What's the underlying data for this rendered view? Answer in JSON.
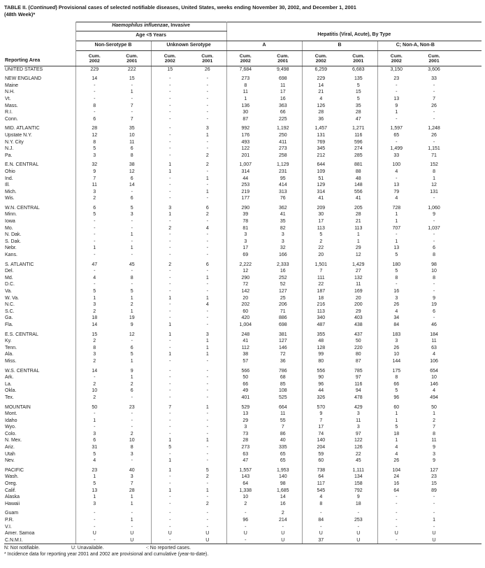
{
  "title": {
    "part1": "TABLE II. (",
    "italic": "Continued",
    "part2": ") Provisional cases of selected notifiable diseases, United States, weeks ending November 30, 2002, and December 1, 2001",
    "line2": "(48th Week)*"
  },
  "header": {
    "reporting_area": "Reporting Area",
    "group1": {
      "title_italic": "Haemophilus influenzae",
      "title_rest": ", Invasive",
      "sub": "Age <5 Years",
      "cols": [
        "Non-Serotype B",
        "Unknown Serotype"
      ]
    },
    "group2": {
      "title": "Hepatitis (Viral, Acute), By Type",
      "cols": [
        "A",
        "B",
        "C; Non-A, Non-B"
      ]
    },
    "cum_label": "Cum.",
    "years": [
      "2002",
      "2001"
    ]
  },
  "rows": [
    {
      "area": "UNITED STATES",
      "values": [
        "229",
        "222",
        "15",
        "26",
        "7,684",
        "9,498",
        "6,259",
        "6,683",
        "3,150",
        "3,606"
      ]
    },
    {
      "area": "NEW ENGLAND",
      "gap": true,
      "values": [
        "14",
        "15",
        "-",
        "-",
        "273",
        "698",
        "229",
        "135",
        "23",
        "33"
      ]
    },
    {
      "area": "Maine",
      "values": [
        "-",
        "-",
        "-",
        "-",
        "8",
        "11",
        "14",
        "5",
        "-",
        "-"
      ]
    },
    {
      "area": "N.H.",
      "values": [
        "-",
        "1",
        "-",
        "-",
        "11",
        "17",
        "21",
        "15",
        "-",
        "-"
      ]
    },
    {
      "area": "Vt.",
      "values": [
        "-",
        "-",
        "-",
        "-",
        "1",
        "16",
        "4",
        "5",
        "13",
        "7"
      ]
    },
    {
      "area": "Mass.",
      "values": [
        "8",
        "7",
        "-",
        "-",
        "136",
        "363",
        "126",
        "35",
        "9",
        "26"
      ]
    },
    {
      "area": "R.I.",
      "values": [
        "-",
        "-",
        "-",
        "-",
        "30",
        "66",
        "28",
        "28",
        "1",
        "-"
      ]
    },
    {
      "area": "Conn.",
      "values": [
        "6",
        "7",
        "-",
        "-",
        "87",
        "225",
        "36",
        "47",
        "-",
        "-"
      ]
    },
    {
      "area": "MID. ATLANTIC",
      "gap": true,
      "values": [
        "28",
        "35",
        "-",
        "3",
        "992",
        "1,192",
        "1,457",
        "1,271",
        "1,597",
        "1,248"
      ]
    },
    {
      "area": "Upstate N.Y.",
      "values": [
        "12",
        "10",
        "-",
        "1",
        "176",
        "250",
        "131",
        "116",
        "65",
        "26"
      ]
    },
    {
      "area": "N.Y. City",
      "values": [
        "8",
        "11",
        "-",
        "-",
        "493",
        "411",
        "769",
        "596",
        "-",
        "-"
      ]
    },
    {
      "area": "N.J.",
      "values": [
        "5",
        "6",
        "-",
        "-",
        "122",
        "273",
        "345",
        "274",
        "1,499",
        "1,151"
      ]
    },
    {
      "area": "Pa.",
      "values": [
        "3",
        "8",
        "-",
        "2",
        "201",
        "258",
        "212",
        "285",
        "33",
        "71"
      ]
    },
    {
      "area": "E.N. CENTRAL",
      "gap": true,
      "values": [
        "32",
        "38",
        "1",
        "2",
        "1,007",
        "1,129",
        "644",
        "881",
        "100",
        "152"
      ]
    },
    {
      "area": "Ohio",
      "values": [
        "9",
        "12",
        "1",
        "-",
        "314",
        "231",
        "109",
        "88",
        "4",
        "8"
      ]
    },
    {
      "area": "Ind.",
      "values": [
        "7",
        "6",
        "-",
        "1",
        "44",
        "95",
        "51",
        "48",
        "-",
        "1"
      ]
    },
    {
      "area": "Ill.",
      "values": [
        "11",
        "14",
        "-",
        "-",
        "253",
        "414",
        "129",
        "148",
        "13",
        "12"
      ]
    },
    {
      "area": "Mich.",
      "values": [
        "3",
        "-",
        "-",
        "1",
        "219",
        "313",
        "314",
        "556",
        "79",
        "131"
      ]
    },
    {
      "area": "Wis.",
      "values": [
        "2",
        "6",
        "-",
        "-",
        "177",
        "76",
        "41",
        "41",
        "4",
        "-"
      ]
    },
    {
      "area": "W.N. CENTRAL",
      "gap": true,
      "values": [
        "6",
        "5",
        "3",
        "6",
        "290",
        "362",
        "209",
        "205",
        "728",
        "1,060"
      ]
    },
    {
      "area": "Minn.",
      "values": [
        "5",
        "3",
        "1",
        "2",
        "39",
        "41",
        "30",
        "28",
        "1",
        "9"
      ]
    },
    {
      "area": "Iowa",
      "values": [
        "-",
        "-",
        "-",
        "-",
        "78",
        "35",
        "17",
        "21",
        "1",
        "-"
      ]
    },
    {
      "area": "Mo.",
      "values": [
        "-",
        "-",
        "2",
        "4",
        "81",
        "82",
        "113",
        "113",
        "707",
        "1,037"
      ]
    },
    {
      "area": "N. Dak.",
      "values": [
        "-",
        "1",
        "-",
        "-",
        "3",
        "3",
        "5",
        "1",
        "-",
        "-"
      ]
    },
    {
      "area": "S. Dak.",
      "values": [
        "-",
        "-",
        "-",
        "-",
        "3",
        "3",
        "2",
        "1",
        "1",
        "-"
      ]
    },
    {
      "area": "Nebr.",
      "values": [
        "1",
        "1",
        "-",
        "-",
        "17",
        "32",
        "22",
        "29",
        "13",
        "6"
      ]
    },
    {
      "area": "Kans.",
      "values": [
        "-",
        "-",
        "-",
        "-",
        "69",
        "166",
        "20",
        "12",
        "5",
        "8"
      ]
    },
    {
      "area": "S. ATLANTIC",
      "gap": true,
      "values": [
        "47",
        "45",
        "2",
        "6",
        "2,222",
        "2,333",
        "1,501",
        "1,429",
        "180",
        "98"
      ]
    },
    {
      "area": "Del.",
      "values": [
        "-",
        "-",
        "-",
        "-",
        "12",
        "16",
        "7",
        "27",
        "5",
        "10"
      ]
    },
    {
      "area": "Md.",
      "values": [
        "4",
        "8",
        "-",
        "1",
        "290",
        "252",
        "111",
        "132",
        "8",
        "8"
      ]
    },
    {
      "area": "D.C.",
      "values": [
        "-",
        "-",
        "-",
        "-",
        "72",
        "52",
        "22",
        "11",
        "-",
        "-"
      ]
    },
    {
      "area": "Va.",
      "values": [
        "5",
        "5",
        "-",
        "-",
        "142",
        "127",
        "187",
        "169",
        "16",
        "-"
      ]
    },
    {
      "area": "W. Va.",
      "values": [
        "1",
        "1",
        "1",
        "1",
        "20",
        "25",
        "18",
        "20",
        "3",
        "9"
      ]
    },
    {
      "area": "N.C.",
      "values": [
        "3",
        "2",
        "-",
        "4",
        "202",
        "206",
        "216",
        "200",
        "26",
        "19"
      ]
    },
    {
      "area": "S.C.",
      "values": [
        "2",
        "1",
        "-",
        "-",
        "60",
        "71",
        "113",
        "29",
        "4",
        "6"
      ]
    },
    {
      "area": "Ga.",
      "values": [
        "18",
        "19",
        "-",
        "-",
        "420",
        "886",
        "340",
        "403",
        "34",
        "-"
      ]
    },
    {
      "area": "Fla.",
      "values": [
        "14",
        "9",
        "1",
        "-",
        "1,004",
        "698",
        "487",
        "438",
        "84",
        "46"
      ]
    },
    {
      "area": "E.S. CENTRAL",
      "gap": true,
      "values": [
        "15",
        "12",
        "1",
        "3",
        "248",
        "381",
        "355",
        "437",
        "183",
        "184"
      ]
    },
    {
      "area": "Ky.",
      "values": [
        "2",
        "-",
        "-",
        "1",
        "41",
        "127",
        "48",
        "50",
        "3",
        "11"
      ]
    },
    {
      "area": "Tenn.",
      "values": [
        "8",
        "6",
        "-",
        "1",
        "112",
        "146",
        "128",
        "220",
        "26",
        "63"
      ]
    },
    {
      "area": "Ala.",
      "values": [
        "3",
        "5",
        "1",
        "1",
        "38",
        "72",
        "99",
        "80",
        "10",
        "4"
      ]
    },
    {
      "area": "Miss.",
      "values": [
        "2",
        "1",
        "-",
        "-",
        "57",
        "36",
        "80",
        "87",
        "144",
        "106"
      ]
    },
    {
      "area": "W.S. CENTRAL",
      "gap": true,
      "values": [
        "14",
        "9",
        "-",
        "-",
        "566",
        "786",
        "556",
        "785",
        "175",
        "654"
      ]
    },
    {
      "area": "Ark.",
      "values": [
        "-",
        "1",
        "-",
        "-",
        "50",
        "68",
        "90",
        "97",
        "8",
        "10"
      ]
    },
    {
      "area": "La.",
      "values": [
        "2",
        "2",
        "-",
        "-",
        "66",
        "85",
        "96",
        "116",
        "66",
        "146"
      ]
    },
    {
      "area": "Okla.",
      "values": [
        "10",
        "6",
        "-",
        "-",
        "49",
        "108",
        "44",
        "94",
        "5",
        "4"
      ]
    },
    {
      "area": "Tex.",
      "values": [
        "2",
        "-",
        "-",
        "-",
        "401",
        "525",
        "326",
        "478",
        "96",
        "494"
      ]
    },
    {
      "area": "MOUNTAIN",
      "gap": true,
      "values": [
        "50",
        "23",
        "7",
        "1",
        "529",
        "664",
        "570",
        "429",
        "60",
        "50"
      ]
    },
    {
      "area": "Mont.",
      "values": [
        "-",
        "-",
        "-",
        "-",
        "13",
        "11",
        "9",
        "3",
        "1",
        "1"
      ]
    },
    {
      "area": "Idaho",
      "values": [
        "1",
        "-",
        "-",
        "-",
        "29",
        "55",
        "7",
        "11",
        "1",
        "2"
      ]
    },
    {
      "area": "Wyo.",
      "values": [
        "-",
        "-",
        "-",
        "-",
        "3",
        "7",
        "17",
        "3",
        "5",
        "7"
      ]
    },
    {
      "area": "Colo.",
      "values": [
        "3",
        "2",
        "-",
        "-",
        "73",
        "86",
        "74",
        "97",
        "18",
        "8"
      ]
    },
    {
      "area": "N. Mex.",
      "values": [
        "6",
        "10",
        "1",
        "1",
        "28",
        "40",
        "140",
        "122",
        "1",
        "11"
      ]
    },
    {
      "area": "Ariz.",
      "values": [
        "31",
        "8",
        "5",
        "-",
        "273",
        "335",
        "204",
        "126",
        "4",
        "9"
      ]
    },
    {
      "area": "Utah",
      "values": [
        "5",
        "3",
        "-",
        "-",
        "63",
        "65",
        "59",
        "22",
        "4",
        "3"
      ]
    },
    {
      "area": "Nev.",
      "values": [
        "4",
        "-",
        "1",
        "-",
        "47",
        "65",
        "60",
        "45",
        "26",
        "9"
      ]
    },
    {
      "area": "PACIFIC",
      "gap": true,
      "values": [
        "23",
        "40",
        "1",
        "5",
        "1,557",
        "1,953",
        "738",
        "1,111",
        "104",
        "127"
      ]
    },
    {
      "area": "Wash.",
      "values": [
        "1",
        "3",
        "-",
        "2",
        "143",
        "140",
        "64",
        "134",
        "24",
        "23"
      ]
    },
    {
      "area": "Oreg.",
      "values": [
        "5",
        "7",
        "-",
        "-",
        "64",
        "98",
        "117",
        "158",
        "16",
        "15"
      ]
    },
    {
      "area": "Calif.",
      "values": [
        "13",
        "28",
        "1",
        "1",
        "1,338",
        "1,685",
        "545",
        "792",
        "64",
        "89"
      ]
    },
    {
      "area": "Alaska",
      "values": [
        "1",
        "1",
        "-",
        "-",
        "10",
        "14",
        "4",
        "9",
        "-",
        "-"
      ]
    },
    {
      "area": "Hawaii",
      "values": [
        "3",
        "1",
        "-",
        "2",
        "2",
        "16",
        "8",
        "18",
        "-",
        "-"
      ]
    },
    {
      "area": "Guam",
      "gap": true,
      "values": [
        "-",
        "-",
        "-",
        "-",
        "-",
        "2",
        "-",
        "-",
        "-",
        "-"
      ]
    },
    {
      "area": "P.R.",
      "values": [
        "-",
        "1",
        "-",
        "-",
        "96",
        "214",
        "84",
        "253",
        "-",
        "1"
      ]
    },
    {
      "area": "V.I.",
      "values": [
        "-",
        "-",
        "-",
        "-",
        "-",
        "-",
        "-",
        "-",
        "-",
        "-"
      ]
    },
    {
      "area": "Amer. Samoa",
      "values": [
        "U",
        "U",
        "U",
        "U",
        "U",
        "U",
        "U",
        "U",
        "U",
        "U"
      ]
    },
    {
      "area": "C.N.M.I.",
      "values": [
        "-",
        "U",
        "-",
        "U",
        "-",
        "U",
        "37",
        "U",
        "-",
        "U"
      ]
    }
  ],
  "footnotes": {
    "n": "N: Not notifiable.",
    "u": "U: Unavailable.",
    "dash": "-: No reported cases.",
    "star": "* Incidence data for reporting year 2001 and 2002 are provisional and cumulative (year-to-date)."
  }
}
